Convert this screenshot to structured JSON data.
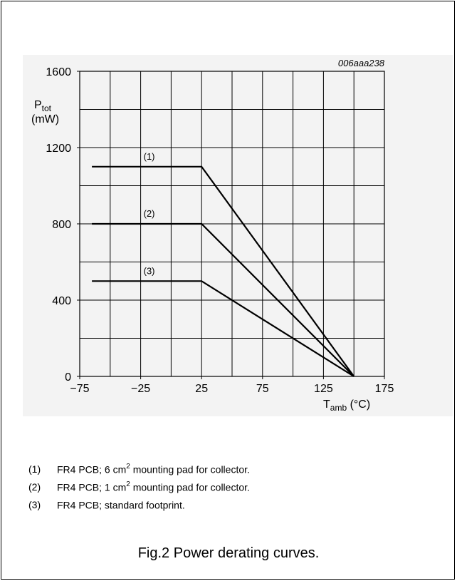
{
  "figure_id": "006aaa238",
  "chart_data": {
    "type": "line",
    "ylabel_main": "P",
    "ylabel_sub": "tot",
    "ylabel_unit": "(mW)",
    "xlabel_main": "T",
    "xlabel_sub": "amb",
    "xlabel_unit": "(°C)",
    "xlim": [
      -75,
      175
    ],
    "ylim": [
      0,
      1600
    ],
    "x_ticks": [
      -75,
      -25,
      25,
      75,
      125,
      175
    ],
    "x_tick_labels": [
      "−75",
      "−25",
      "25",
      "75",
      "125",
      "175"
    ],
    "y_ticks": [
      0,
      400,
      800,
      1200,
      1600
    ],
    "y_tick_labels": [
      "0",
      "400",
      "800",
      "1200",
      "1600"
    ],
    "grid": true,
    "series": [
      {
        "label": "(1)",
        "points": [
          [
            -65,
            1100
          ],
          [
            25,
            1100
          ],
          [
            150,
            0
          ]
        ]
      },
      {
        "label": "(2)",
        "points": [
          [
            -65,
            800
          ],
          [
            25,
            800
          ],
          [
            150,
            0
          ]
        ]
      },
      {
        "label": "(3)",
        "points": [
          [
            -65,
            500
          ],
          [
            25,
            500
          ],
          [
            150,
            0
          ]
        ]
      }
    ]
  },
  "notes": [
    {
      "num": "(1)",
      "pre": "FR4 PCB; 6 cm",
      "sup": "2",
      "post": " mounting pad for collector."
    },
    {
      "num": "(2)",
      "pre": "FR4 PCB; 1 cm",
      "sup": "2",
      "post": " mounting pad for collector."
    },
    {
      "num": "(3)",
      "pre": "FR4 PCB; standard footprint.",
      "sup": "",
      "post": ""
    }
  ],
  "caption": "Fig.2  Power derating curves."
}
